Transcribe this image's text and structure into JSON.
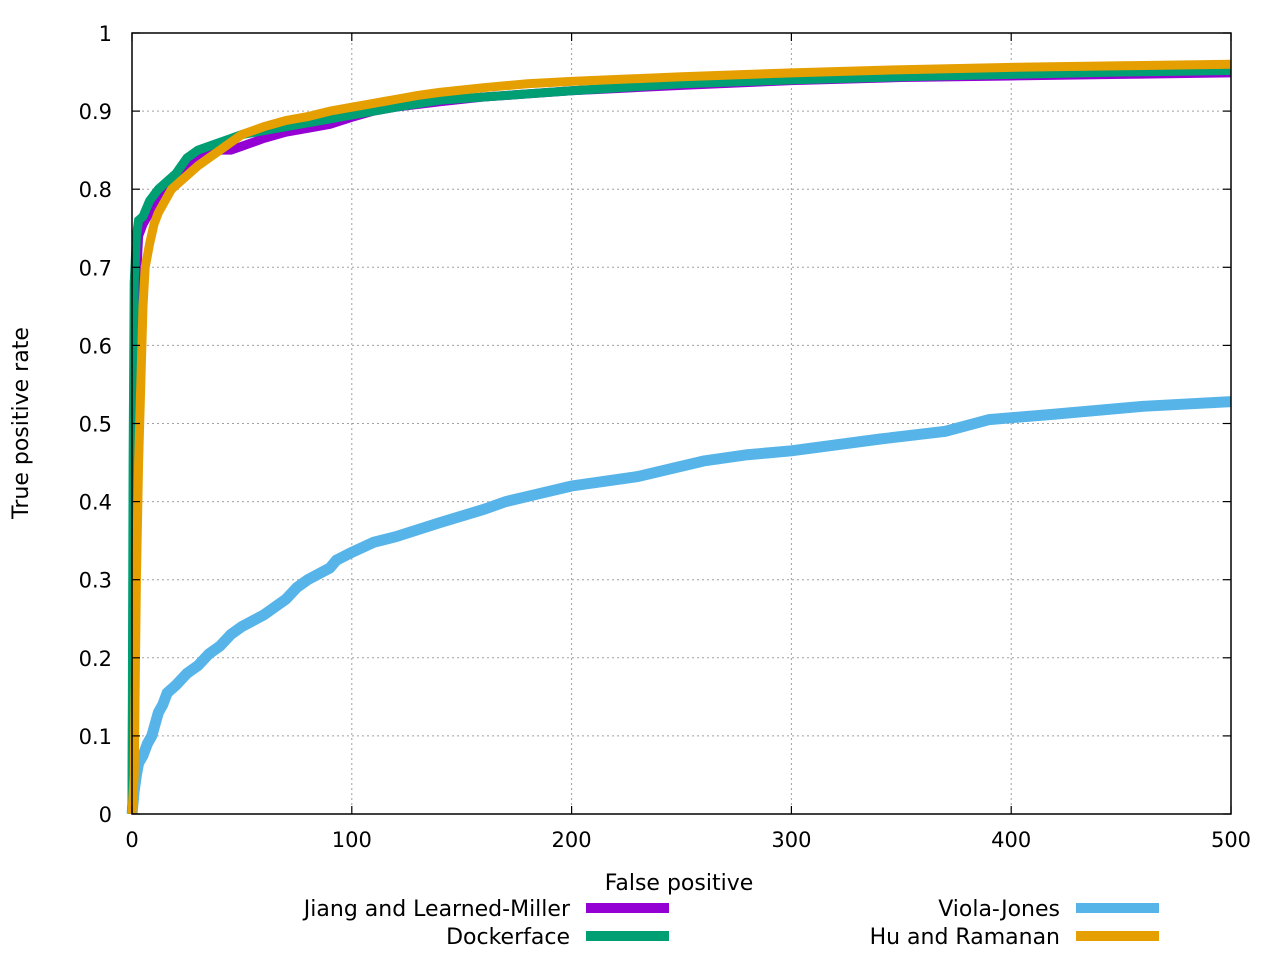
{
  "chart_data": {
    "type": "line",
    "xlabel": "False positive",
    "ylabel": "True positive rate",
    "xlim": [
      0,
      500
    ],
    "ylim": [
      0,
      1
    ],
    "xticks": [
      "0",
      "100",
      "200",
      "300",
      "400",
      "500"
    ],
    "yticks": [
      "0",
      "0.1",
      "0.2",
      "0.3",
      "0.4",
      "0.5",
      "0.6",
      "0.7",
      "0.8",
      "0.9",
      "1"
    ],
    "grid": true,
    "legend_position": "bottom",
    "series": [
      {
        "name": "Jiang and Learned-Miller",
        "color": "#9400d3",
        "x": [
          0,
          0.5,
          1,
          2,
          3,
          5,
          8,
          12,
          16,
          20,
          25,
          30,
          35,
          40,
          45,
          50,
          60,
          70,
          80,
          90,
          100,
          110,
          120,
          140,
          160,
          180,
          200,
          250,
          300,
          350,
          400,
          450,
          500
        ],
        "y": [
          0,
          0.3,
          0.5,
          0.68,
          0.74,
          0.755,
          0.77,
          0.785,
          0.8,
          0.815,
          0.83,
          0.84,
          0.845,
          0.85,
          0.85,
          0.855,
          0.865,
          0.873,
          0.878,
          0.883,
          0.892,
          0.9,
          0.905,
          0.912,
          0.918,
          0.922,
          0.926,
          0.933,
          0.939,
          0.943,
          0.945,
          0.947,
          0.949
        ]
      },
      {
        "name": "Dockerface",
        "color": "#009e73",
        "x": [
          0,
          0.5,
          1,
          2,
          3,
          5,
          8,
          12,
          16,
          20,
          25,
          30,
          35,
          40,
          45,
          50,
          60,
          70,
          80,
          90,
          100,
          110,
          120,
          140,
          160,
          180,
          200,
          250,
          300,
          350,
          400,
          450,
          500
        ],
        "y": [
          0,
          0.45,
          0.68,
          0.74,
          0.76,
          0.765,
          0.785,
          0.8,
          0.81,
          0.82,
          0.84,
          0.85,
          0.855,
          0.86,
          0.865,
          0.87,
          0.875,
          0.88,
          0.885,
          0.89,
          0.895,
          0.9,
          0.905,
          0.914,
          0.918,
          0.922,
          0.926,
          0.935,
          0.94,
          0.944,
          0.947,
          0.95,
          0.952
        ]
      },
      {
        "name": "Viola-Jones",
        "color": "#56b4e9",
        "x": [
          0,
          1,
          2,
          3,
          5,
          7,
          9,
          10,
          12,
          14,
          16,
          20,
          25,
          30,
          35,
          40,
          45,
          50,
          60,
          70,
          75,
          80,
          90,
          93,
          100,
          110,
          120,
          140,
          160,
          170,
          185,
          200,
          230,
          260,
          280,
          300,
          340,
          370,
          390,
          420,
          460,
          500
        ],
        "y": [
          0,
          0.03,
          0.05,
          0.065,
          0.075,
          0.09,
          0.1,
          0.11,
          0.13,
          0.14,
          0.155,
          0.165,
          0.18,
          0.19,
          0.205,
          0.215,
          0.23,
          0.24,
          0.255,
          0.275,
          0.29,
          0.3,
          0.315,
          0.325,
          0.335,
          0.348,
          0.355,
          0.373,
          0.39,
          0.4,
          0.41,
          0.42,
          0.432,
          0.452,
          0.46,
          0.465,
          0.48,
          0.49,
          0.505,
          0.512,
          0.522,
          0.528
        ]
      },
      {
        "name": "Hu and Ramanan",
        "color": "#e69f00",
        "x": [
          0,
          1,
          2,
          3,
          4,
          5,
          6,
          8,
          10,
          12,
          15,
          18,
          22,
          26,
          30,
          35,
          40,
          45,
          50,
          60,
          70,
          80,
          90,
          100,
          110,
          120,
          130,
          140,
          160,
          180,
          200,
          250,
          300,
          350,
          400,
          450,
          500
        ],
        "y": [
          0,
          0.05,
          0.3,
          0.45,
          0.55,
          0.65,
          0.7,
          0.73,
          0.755,
          0.77,
          0.785,
          0.8,
          0.81,
          0.82,
          0.83,
          0.84,
          0.85,
          0.86,
          0.87,
          0.88,
          0.888,
          0.893,
          0.9,
          0.905,
          0.91,
          0.915,
          0.92,
          0.924,
          0.93,
          0.935,
          0.938,
          0.944,
          0.949,
          0.953,
          0.956,
          0.958,
          0.96
        ]
      }
    ]
  }
}
